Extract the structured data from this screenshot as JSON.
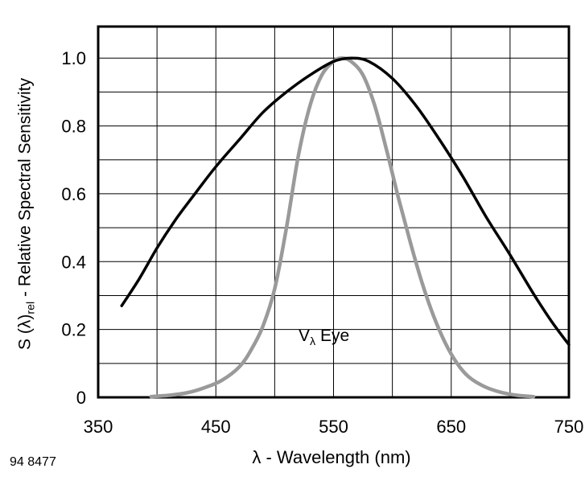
{
  "labels": {
    "y_prefix": "S (λ)",
    "y_sub": "rel",
    "y_suffix": " - Relative Spectral Sensitivity",
    "x_title": "λ - Wavelength (nm)",
    "fig_number": "94 8477",
    "eye_main": "V",
    "eye_sub": "λ",
    "eye_rest": " Eye"
  },
  "chart_data": {
    "type": "line",
    "title": "",
    "xlabel": "λ - Wavelength (nm)",
    "ylabel": "S (λ)rel - Relative Spectral Sensitivity",
    "xlim": [
      350,
      750
    ],
    "ylim": [
      0,
      1.0
    ],
    "xticks": [
      350,
      450,
      550,
      650,
      750
    ],
    "yticks": [
      "0",
      "0.2",
      "0.4",
      "0.6",
      "0.8",
      "1.0"
    ],
    "grid": {
      "x_step": 50,
      "y_step": 0.1,
      "on": true
    },
    "legend": "none",
    "annotation": {
      "text": "Vλ Eye",
      "x": 557,
      "y": 0.19
    },
    "series": [
      {
        "name": "eye-v-lambda",
        "color": "#9a9a9a",
        "width": 4.5,
        "x": [
          395,
          410,
          425,
          440,
          455,
          470,
          480,
          490,
          500,
          510,
          520,
          530,
          540,
          550,
          557,
          565,
          575,
          585,
          595,
          605,
          615,
          625,
          635,
          645,
          655,
          665,
          678,
          692,
          706,
          720
        ],
        "y": [
          0.002,
          0.006,
          0.013,
          0.028,
          0.05,
          0.09,
          0.14,
          0.21,
          0.32,
          0.5,
          0.71,
          0.86,
          0.95,
          0.99,
          1.0,
          0.99,
          0.95,
          0.86,
          0.73,
          0.59,
          0.46,
          0.34,
          0.24,
          0.16,
          0.1,
          0.06,
          0.032,
          0.015,
          0.006,
          0.002
        ]
      },
      {
        "name": "detector",
        "color": "#000000",
        "width": 3.5,
        "x": [
          370,
          385,
          400,
          415,
          430,
          450,
          470,
          490,
          510,
          530,
          550,
          565,
          580,
          600,
          620,
          640,
          660,
          680,
          700,
          720,
          735,
          750
        ],
        "y": [
          0.27,
          0.35,
          0.44,
          0.52,
          0.59,
          0.68,
          0.76,
          0.84,
          0.9,
          0.95,
          0.99,
          1.0,
          0.99,
          0.94,
          0.86,
          0.76,
          0.65,
          0.53,
          0.42,
          0.305,
          0.225,
          0.155
        ]
      }
    ]
  }
}
